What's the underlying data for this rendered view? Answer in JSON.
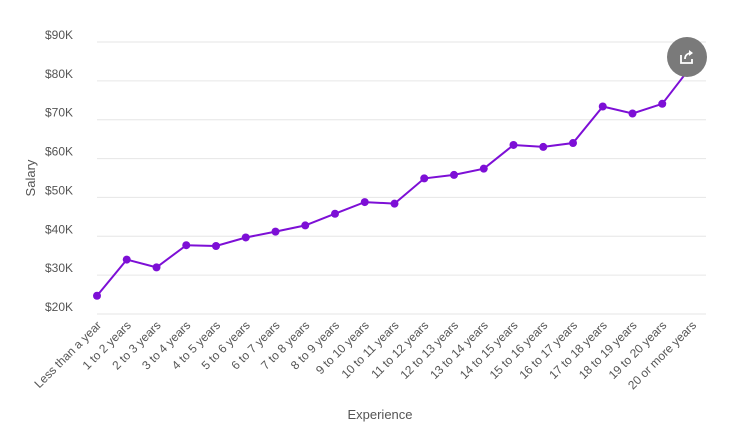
{
  "colors": {
    "line": "#7d0fd6",
    "point": "#7d0fd6",
    "grid": "#e6e6e6",
    "share_button": "#7a7a7a"
  },
  "share_button": {
    "icon": "share-icon"
  },
  "chart_data": {
    "type": "line",
    "title": "",
    "xlabel": "Experience",
    "ylabel": "Salary",
    "ylim": [
      20000,
      90000
    ],
    "yticks": [
      20000,
      30000,
      40000,
      50000,
      60000,
      70000,
      80000,
      90000
    ],
    "ytick_labels": [
      "$20K",
      "$30K",
      "$40K",
      "$50K",
      "$60K",
      "$70K",
      "$80K",
      "$90K"
    ],
    "grid": true,
    "categories": [
      "Less than a year",
      "1 to 2 years",
      "2 to 3 years",
      "3 to 4 years",
      "4 to 5 years",
      "5 to 6 years",
      "6 to 7 years",
      "7 to 8 years",
      "8 to 9 years",
      "9 to 10 years",
      "10 to 11 years",
      "11 to 12 years",
      "12 to 13 years",
      "13 to 14 years",
      "14 to 15 years",
      "15 to 16 years",
      "16 to 17 years",
      "17 to 18 years",
      "18 to 19 years",
      "19 to 20 years",
      "20 or more years"
    ],
    "series": [
      {
        "values": [
          24700,
          34000,
          32000,
          37700,
          37500,
          39700,
          41200,
          42800,
          45800,
          48800,
          48400,
          54900,
          55800,
          57400,
          63500,
          63000,
          64000,
          73400,
          71600,
          74100,
          84000
        ]
      }
    ]
  }
}
